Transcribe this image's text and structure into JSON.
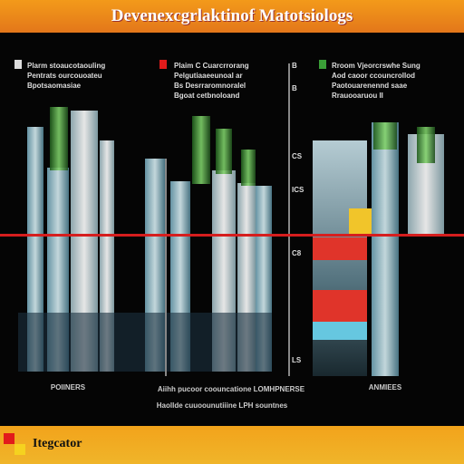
{
  "header": {
    "title": "Devenexcgrlaktinof Matotsiologs"
  },
  "panels": [
    {
      "legend": [
        "Plarm stoaucotaouling",
        "Pentrats ourcouoateu",
        "Bpotsaomasiae"
      ],
      "caption": "POIINERS"
    },
    {
      "legend": [
        "Plaim C Cuarcrrorang",
        "Pelgutiaaeeunoal ar",
        "Bs Desrraromnoralel",
        "Bgoat cetbnoloand"
      ],
      "caption": "Aiihh pucoor coouncatione LOMHPNERSE"
    },
    {
      "legend": [
        "Rroom Vjeorcrswhe Sung",
        "Aod caoor ccouncrollod",
        "Paotouarenennd saae",
        "Rrauooaruou II"
      ],
      "caption": "ANMIEES"
    }
  ],
  "axis_labels": [
    "B",
    "B",
    "CS",
    "ICS",
    "C8",
    "LS"
  ],
  "subcaption": "Haollde cuuoounutiiine LPH sountnes",
  "footer": {
    "label": "Itegcator"
  }
}
